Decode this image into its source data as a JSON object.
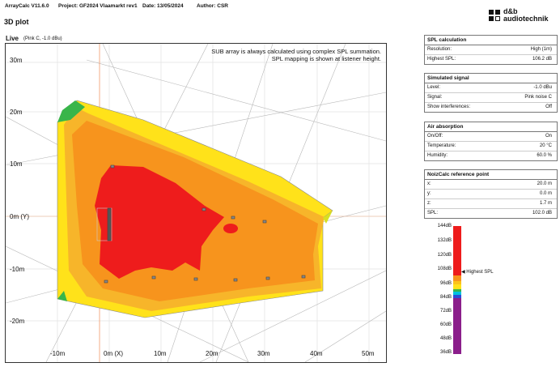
{
  "header": {
    "app": "ArrayCalc V11.6.0",
    "project": "Project:  GF2024 Vlaamarkt rev1",
    "date": "Date:  13/05/2024",
    "author": "Author:  CSR"
  },
  "logo": {
    "line1": "d&b",
    "line2": "audiotechnik"
  },
  "page_title": "3D plot",
  "live": {
    "label": "Live",
    "sub": "(Pink C, -1.0 dBu)"
  },
  "notes": {
    "line1": "SUB array is always calculated using complex SPL summation.",
    "line2": "SPL mapping is shown at listener height."
  },
  "axes": {
    "y_labels": [
      "30m",
      "20m",
      "10m",
      "0m (Y)",
      "-10m",
      "-20m"
    ],
    "x_labels": [
      "-10m",
      "0m (X)",
      "10m",
      "20m",
      "30m",
      "40m",
      "50m"
    ]
  },
  "panels": {
    "spl_calc": {
      "title": "SPL calculation",
      "rows": [
        {
          "label": "Resolution:",
          "value": "High (1m)"
        },
        {
          "label": "Highest SPL:",
          "value": "106.2 dB"
        }
      ]
    },
    "signal": {
      "title": "Simulated signal",
      "rows": [
        {
          "label": "Level:",
          "value": "-1.0 dBu"
        },
        {
          "label": "Signal:",
          "value": "Pink noise C"
        },
        {
          "label": "Show interferences:",
          "value": "Off"
        }
      ]
    },
    "air": {
      "title": "Air absorption",
      "rows": [
        {
          "label": "On/Off:",
          "value": "On"
        },
        {
          "label": "Temperature:",
          "value": "20 °C"
        },
        {
          "label": "Humidity:",
          "value": "60.0 %"
        }
      ]
    },
    "noizcalc": {
      "title": "NoizCalc reference point",
      "rows": [
        {
          "label": "x:",
          "value": "20.0 m"
        },
        {
          "label": "y:",
          "value": "0.0 m"
        },
        {
          "label": "z:",
          "value": "1.7 m"
        },
        {
          "label": "SPL:",
          "value": "102.0 dB"
        }
      ]
    }
  },
  "scale": {
    "ticks": [
      "144dB",
      "132dB",
      "120dB",
      "108dB",
      "96dB",
      "84dB",
      "72dB",
      "60dB",
      "48dB",
      "36dB"
    ],
    "marker_label": "Highest SPL",
    "colors": {
      "red": "#ee1c1c",
      "orange": "#f7941d",
      "yellow": "#ffe21a",
      "green": "#39b54a",
      "cyan": "#00c0e0",
      "blue": "#2c4bd6",
      "purple": "#8b1e8b"
    }
  }
}
